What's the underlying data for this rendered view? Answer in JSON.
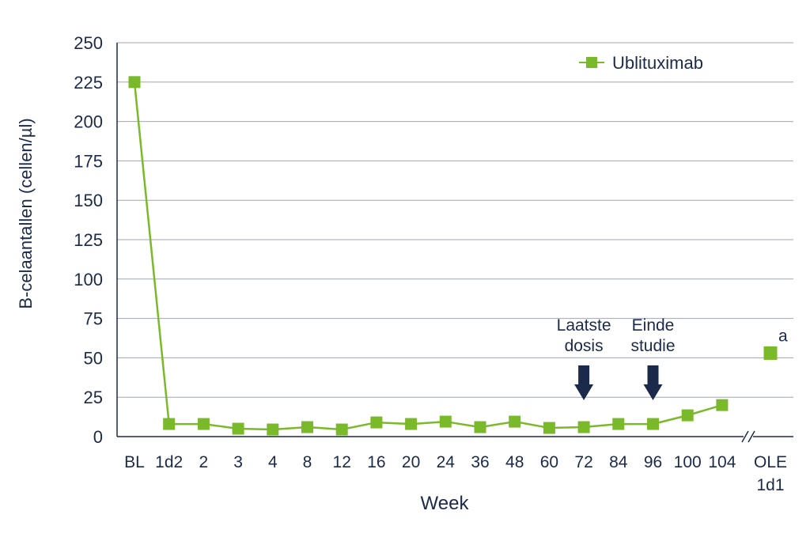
{
  "colors": {
    "series": "#7AB929",
    "axis_text": "#1B2A4A",
    "arrow": "#1B2A4A",
    "axis_line": "#1B2A4A",
    "gridline": "#A0A6B2"
  },
  "chart_data": {
    "type": "line",
    "title": "",
    "xlabel": "Week",
    "ylabel": "B-celaantallen (cellen/µl)",
    "ylim": [
      0,
      250
    ],
    "yticks": [
      0,
      25,
      50,
      75,
      100,
      125,
      150,
      175,
      200,
      225,
      250
    ],
    "categories": [
      "BL",
      "1d2",
      "2",
      "3",
      "4",
      "8",
      "12",
      "16",
      "20",
      "24",
      "36",
      "48",
      "60",
      "72",
      "84",
      "96",
      "100",
      "104"
    ],
    "extra_category": {
      "line1": "OLE",
      "line2": "1d1"
    },
    "axis_break": true,
    "grid": "horizontal",
    "legend_position": "top-right",
    "series": [
      {
        "name": "Ublituximab",
        "values": [
          225,
          8,
          8,
          5,
          4.5,
          6,
          4.5,
          9,
          8,
          9.5,
          6,
          9.5,
          5.5,
          6,
          8,
          8,
          13.5,
          20
        ]
      }
    ],
    "extra_point": {
      "category": "OLE 1d1",
      "value": 53,
      "annotation": "a"
    },
    "annotations": [
      {
        "category": "72",
        "line1": "Laatste",
        "line2": "dosis"
      },
      {
        "category": "96",
        "line1": "Einde",
        "line2": "studie"
      }
    ]
  }
}
